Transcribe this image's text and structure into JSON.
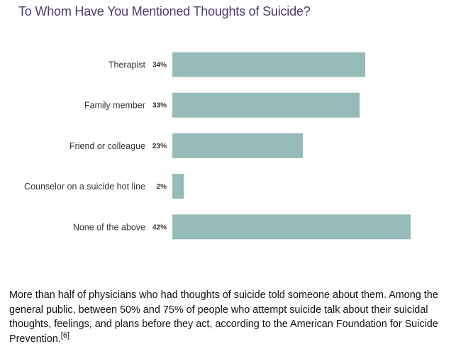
{
  "chart_data": {
    "type": "bar",
    "orientation": "horizontal",
    "title": "To Whom Have You Mentioned Thoughts of Suicide?",
    "categories": [
      "Therapist",
      "Family member",
      "Friend or colleague",
      "Counselor on a suicide hot line",
      "None of the above"
    ],
    "values": [
      34,
      33,
      23,
      2,
      42
    ],
    "value_labels": [
      "34%",
      "33%",
      "23%",
      "2%",
      "42%"
    ],
    "xlim": [
      0,
      42
    ],
    "grid": false,
    "bar_color": "#95bbb8"
  },
  "caption": {
    "text": "More than half of physicians who had thoughts of suicide told someone about them. Among the general public, between 50% and 75% of people who attempt suicide talk about their suicidal thoughts, feelings, and plans before they act, according to the American Foundation for Suicide Prevention.",
    "footnote": "[6]"
  },
  "colors": {
    "title": "#4b3a6b",
    "bar": "#95bbb8"
  }
}
